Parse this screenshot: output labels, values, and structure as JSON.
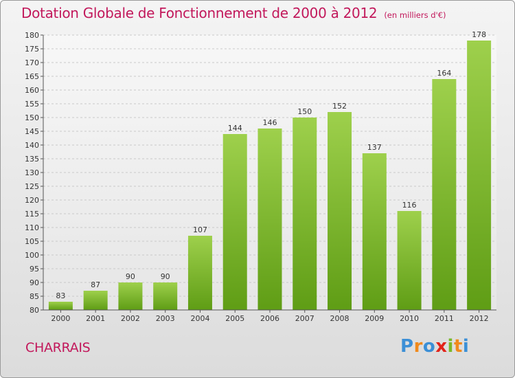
{
  "header": {
    "title": "Dotation Globale de Fonctionnement de 2000 à 2012",
    "subtitle": "(en milliers d'€)"
  },
  "footer": {
    "commune": "CHARRAIS",
    "logo_text": "Proxiti"
  },
  "colors": {
    "title": "#c2185b",
    "bar_light": "#9ed04c",
    "bar_dark": "#5f9d15",
    "logo": [
      "#3b8fd6",
      "#f08a1c",
      "#3b8fd6",
      "#e2231a",
      "#7ab829",
      "#f08a1c",
      "#3b8fd6"
    ]
  },
  "chart_data": {
    "type": "bar",
    "categories": [
      "2000",
      "2001",
      "2002",
      "2003",
      "2004",
      "2005",
      "2006",
      "2007",
      "2008",
      "2009",
      "2010",
      "2011",
      "2012"
    ],
    "values": [
      83,
      87,
      90,
      90,
      107,
      144,
      146,
      150,
      152,
      137,
      116,
      164,
      178
    ],
    "ylim": [
      80,
      180
    ],
    "yticks": [
      80,
      85,
      90,
      95,
      100,
      105,
      110,
      115,
      120,
      125,
      130,
      135,
      140,
      145,
      150,
      155,
      160,
      165,
      170,
      175,
      180
    ],
    "grid": true,
    "title": "Dotation Globale de Fonctionnement de 2000 à 2012",
    "subtitle": "(en milliers d'€)",
    "xlabel": "",
    "ylabel": ""
  }
}
